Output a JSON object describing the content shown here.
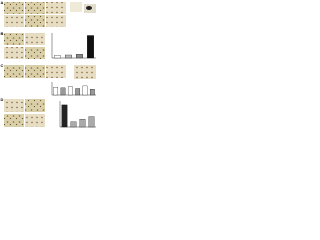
{
  "panels": [
    {
      "label": "A"
    },
    {
      "label": "B",
      "chart": {
        "type": "bar",
        "values": [
          10,
          12,
          15,
          90
        ],
        "colors": [
          "#ffffff",
          "#bbbbbb",
          "#888888",
          "#111111"
        ],
        "ylim": [
          0,
          100
        ]
      }
    },
    {
      "label": "C",
      "chart": {
        "type": "bar",
        "values": [
          60,
          55,
          65,
          50,
          70,
          45
        ],
        "colors": [
          "#ffffff",
          "#999999",
          "#ffffff",
          "#999999",
          "#ffffff",
          "#999999"
        ],
        "ylim": [
          0,
          100
        ]
      }
    },
    {
      "label": "D",
      "chart": {
        "type": "bar",
        "values": [
          85,
          20,
          30,
          40
        ],
        "colors": [
          "#222222",
          "#aaaaaa",
          "#aaaaaa",
          "#aaaaaa"
        ],
        "ylim": [
          0,
          100
        ]
      }
    }
  ]
}
